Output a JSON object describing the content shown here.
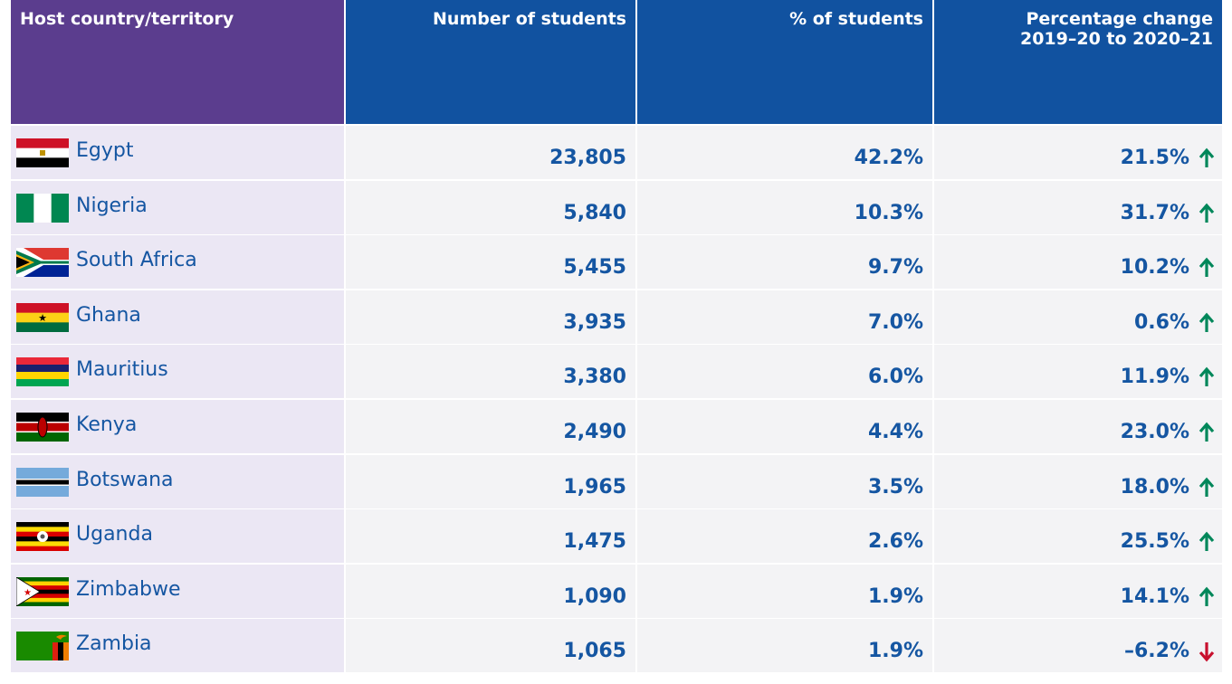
{
  "table": {
    "headers": [
      "Host country/territory",
      "Number of students",
      "% of students",
      "Percentage change\n2019–20 to 2020–21"
    ],
    "rows": [
      [
        "Egypt",
        "23,805",
        "42.2%",
        "21.5%"
      ],
      [
        "Nigeria",
        "5,840",
        "10.3%",
        "31.7%"
      ],
      [
        "South Africa",
        "5,455",
        "9.7%",
        "10.2%"
      ],
      [
        "Ghana",
        "3,935",
        "7.0%",
        "0.6%"
      ],
      [
        "Mauritius",
        "3,380",
        "6.0%",
        "11.9%"
      ],
      [
        "Kenya",
        "2,490",
        "4.4%",
        "23.0%"
      ],
      [
        "Botswana",
        "1,965",
        "3.5%",
        "18.0%"
      ],
      [
        "Uganda",
        "1,475",
        "2.6%",
        "25.5%"
      ],
      [
        "Zimbabwe",
        "1,090",
        "1.9%",
        "14.1%"
      ],
      [
        "Zambia",
        "1,065",
        "1.9%",
        "–6.2%"
      ]
    ]
  }
}
